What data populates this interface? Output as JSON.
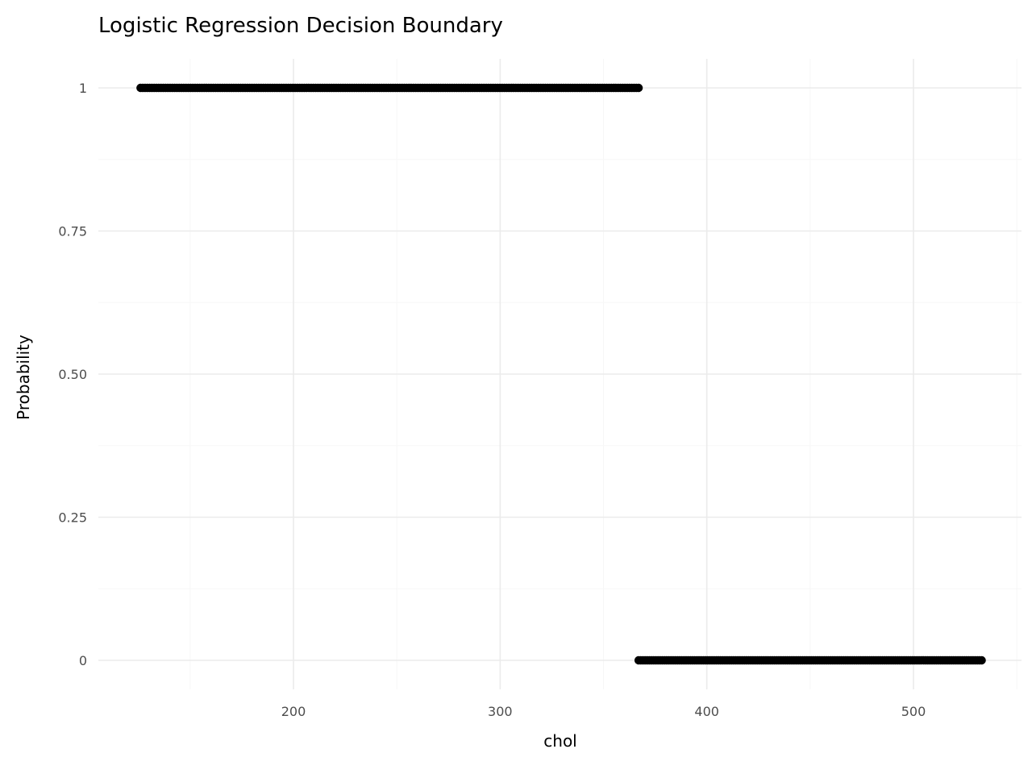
{
  "chart_data": {
    "type": "scatter",
    "title": "Logistic Regression Decision Boundary",
    "xlabel": "chol",
    "ylabel": "Probability",
    "xlim": [
      100,
      550
    ],
    "ylim": [
      -0.1,
      1.1
    ],
    "x_ticks": [
      200,
      300,
      400,
      500
    ],
    "x_tick_labels": [
      "200",
      "300",
      "400",
      "500"
    ],
    "x_minor_ticks": [
      150,
      250,
      350,
      450,
      550
    ],
    "y_ticks": [
      0,
      0.25,
      0.5,
      0.75,
      1
    ],
    "y_tick_labels": [
      "0",
      "0.25",
      "0.50",
      "0.75",
      "1"
    ],
    "y_minor_ticks": [
      0.125,
      0.375,
      0.625,
      0.875
    ],
    "grid": true,
    "point_color": "#000000",
    "segments": [
      {
        "x_start": 126,
        "x_end": 367,
        "y": 1,
        "n_points": 220
      },
      {
        "x_start": 367,
        "x_end": 533,
        "y": 0,
        "n_points": 160
      }
    ]
  }
}
